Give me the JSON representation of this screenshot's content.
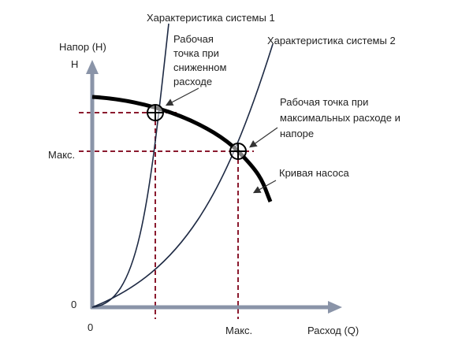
{
  "title": "Характеристика системы 1",
  "labels": {
    "system2": "Характеристика системы 2",
    "y_axis": "Напор (Н)",
    "y_symbol": "Н",
    "y_zero": "0",
    "y_max": "Макс.",
    "x_zero": "0",
    "x_max": "Макс.",
    "x_axis": "Расход (Q)",
    "reduced_point": [
      "Рабочая",
      "точка при",
      "сниженном",
      "расходе"
    ],
    "max_point": [
      "Рабочая точка при",
      "максимальных расходе и",
      "напоре"
    ],
    "pump_curve": "Кривая насоса"
  }
}
